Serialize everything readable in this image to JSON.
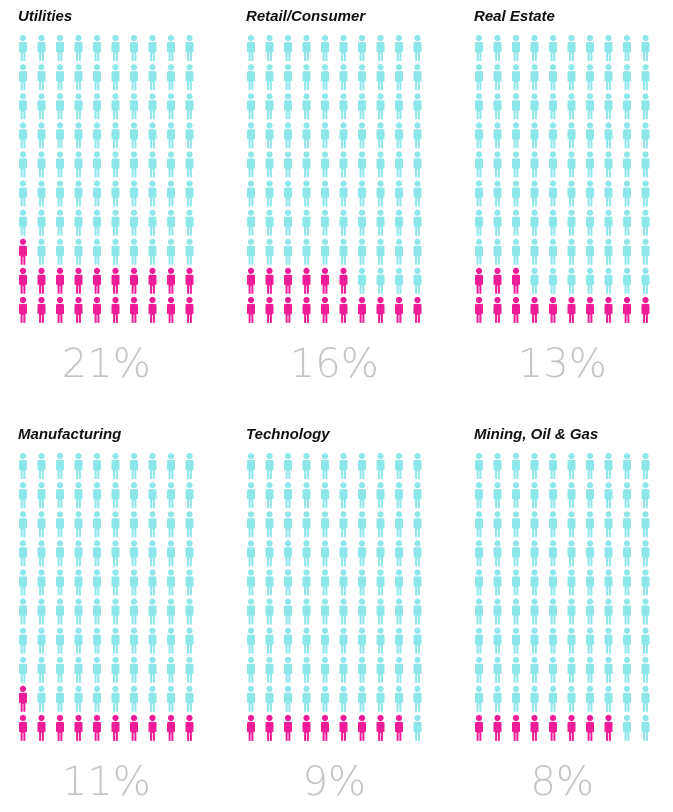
{
  "chart_data": {
    "type": "pictograph",
    "grid": {
      "rows": 10,
      "cols": 10,
      "total": 100
    },
    "colors": {
      "highlight": "#ee1c96",
      "base": "#8ce6ea"
    },
    "panels": [
      {
        "title": "Utilities",
        "value": 21,
        "label": "21%"
      },
      {
        "title": "Retail/Consumer",
        "value": 16,
        "label": "16%"
      },
      {
        "title": "Real Estate",
        "value": 13,
        "label": "13%"
      },
      {
        "title": "Manufacturing",
        "value": 11,
        "label": "11%"
      },
      {
        "title": "Technology",
        "value": 9,
        "label": "9%"
      },
      {
        "title": "Mining, Oil & Gas",
        "value": 8,
        "label": "8%"
      }
    ]
  }
}
